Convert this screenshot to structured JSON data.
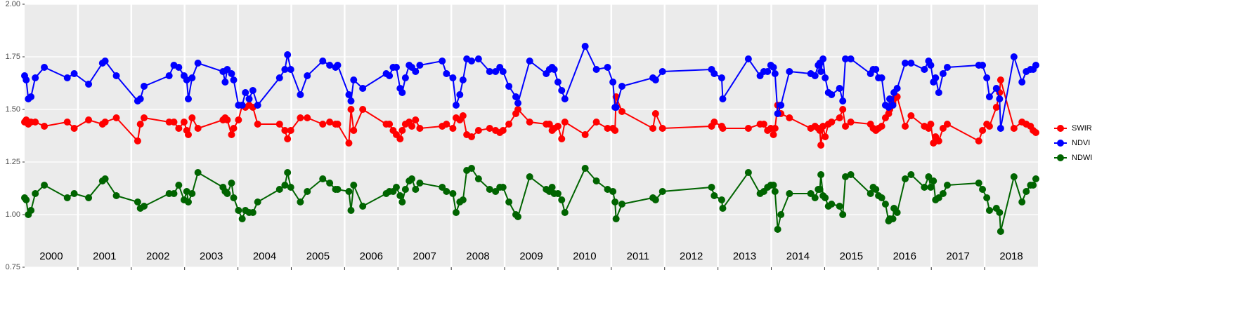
{
  "chart_data": {
    "type": "line",
    "x": [
      2000.0,
      2000.03,
      2000.07,
      2000.12,
      2000.2,
      2000.37,
      2000.8,
      2000.93,
      2001.2,
      2001.46,
      2001.51,
      2001.72,
      2002.12,
      2002.17,
      2002.24,
      2002.71,
      2002.8,
      2002.89,
      2002.99,
      2003.04,
      2003.07,
      2003.14,
      2003.25,
      2003.72,
      2003.76,
      2003.8,
      2003.88,
      2003.92,
      2004.01,
      2004.08,
      2004.14,
      2004.21,
      2004.28,
      2004.37,
      2004.78,
      2004.88,
      2004.93,
      2004.99,
      2005.17,
      2005.3,
      2005.59,
      2005.72,
      2005.83,
      2005.87,
      2006.08,
      2006.12,
      2006.17,
      2006.34,
      2006.78,
      2006.84,
      2006.91,
      2006.97,
      2007.04,
      2007.08,
      2007.14,
      2007.21,
      2007.26,
      2007.33,
      2007.41,
      2007.83,
      2007.91,
      2008.03,
      2008.09,
      2008.16,
      2008.22,
      2008.29,
      2008.38,
      2008.51,
      2008.72,
      2008.83,
      2008.91,
      2008.97,
      2009.08,
      2009.21,
      2009.25,
      2009.47,
      2009.78,
      2009.84,
      2009.89,
      2009.93,
      2010.0,
      2010.07,
      2010.13,
      2010.51,
      2010.72,
      2010.93,
      2011.03,
      2011.07,
      2011.09,
      2011.2,
      2011.78,
      2011.83,
      2011.96,
      2012.88,
      2012.93,
      2013.07,
      2013.09,
      2013.57,
      2013.79,
      2013.86,
      2013.93,
      2013.99,
      2014.04,
      2014.07,
      2014.12,
      2014.18,
      2014.34,
      2014.74,
      2014.82,
      2014.88,
      2014.91,
      2014.93,
      2014.97,
      2015.01,
      2015.07,
      2015.13,
      2015.28,
      2015.34,
      2015.39,
      2015.49,
      2015.86,
      2015.91,
      2015.96,
      2016.01,
      2016.07,
      2016.14,
      2016.2,
      2016.22,
      2016.28,
      2016.3,
      2016.36,
      2016.51,
      2016.62,
      2016.87,
      2016.95,
      2016.99,
      2017.04,
      2017.08,
      2017.14,
      2017.22,
      2017.3,
      2017.89,
      2017.96,
      2018.04,
      2018.09,
      2018.22,
      2018.28,
      2018.3,
      2018.55,
      2018.7,
      2018.78,
      2018.86,
      2018.91,
      2018.96
    ],
    "series": [
      {
        "name": "SWIR",
        "color": "#ff0000",
        "values": [
          1.44,
          1.45,
          1.43,
          1.44,
          1.44,
          1.42,
          1.44,
          1.41,
          1.45,
          1.43,
          1.44,
          1.46,
          1.35,
          1.43,
          1.46,
          1.44,
          1.44,
          1.41,
          1.44,
          1.4,
          1.38,
          1.46,
          1.41,
          1.45,
          1.46,
          1.45,
          1.38,
          1.41,
          1.45,
          1.52,
          1.51,
          1.52,
          1.51,
          1.43,
          1.43,
          1.4,
          1.36,
          1.4,
          1.46,
          1.46,
          1.43,
          1.44,
          1.43,
          1.43,
          1.34,
          1.5,
          1.4,
          1.5,
          1.43,
          1.43,
          1.4,
          1.38,
          1.36,
          1.4,
          1.43,
          1.44,
          1.42,
          1.45,
          1.41,
          1.42,
          1.43,
          1.41,
          1.46,
          1.45,
          1.47,
          1.38,
          1.37,
          1.4,
          1.41,
          1.4,
          1.39,
          1.4,
          1.43,
          1.48,
          1.5,
          1.44,
          1.43,
          1.43,
          1.4,
          1.41,
          1.42,
          1.36,
          1.44,
          1.38,
          1.44,
          1.41,
          1.41,
          1.4,
          1.56,
          1.49,
          1.41,
          1.48,
          1.41,
          1.42,
          1.44,
          1.42,
          1.41,
          1.41,
          1.43,
          1.43,
          1.4,
          1.41,
          1.38,
          1.41,
          1.52,
          1.48,
          1.46,
          1.41,
          1.42,
          1.41,
          1.4,
          1.33,
          1.42,
          1.37,
          1.43,
          1.44,
          1.46,
          1.5,
          1.42,
          1.44,
          1.43,
          1.41,
          1.4,
          1.41,
          1.42,
          1.46,
          1.48,
          1.5,
          1.53,
          1.55,
          1.56,
          1.42,
          1.47,
          1.42,
          1.41,
          1.43,
          1.34,
          1.37,
          1.35,
          1.41,
          1.43,
          1.35,
          1.4,
          1.43,
          1.42,
          1.51,
          1.58,
          1.64,
          1.41,
          1.44,
          1.43,
          1.42,
          1.4,
          1.39
        ]
      },
      {
        "name": "NDVI",
        "color": "#0000ff",
        "values": [
          1.66,
          1.64,
          1.55,
          1.56,
          1.65,
          1.7,
          1.65,
          1.67,
          1.62,
          1.72,
          1.73,
          1.66,
          1.54,
          1.55,
          1.61,
          1.66,
          1.71,
          1.7,
          1.66,
          1.64,
          1.55,
          1.65,
          1.72,
          1.68,
          1.63,
          1.69,
          1.67,
          1.64,
          1.52,
          1.52,
          1.58,
          1.55,
          1.59,
          1.52,
          1.65,
          1.69,
          1.76,
          1.69,
          1.57,
          1.66,
          1.73,
          1.71,
          1.7,
          1.71,
          1.57,
          1.54,
          1.64,
          1.6,
          1.67,
          1.66,
          1.7,
          1.7,
          1.6,
          1.58,
          1.65,
          1.71,
          1.7,
          1.68,
          1.71,
          1.73,
          1.67,
          1.65,
          1.52,
          1.57,
          1.64,
          1.74,
          1.73,
          1.74,
          1.68,
          1.68,
          1.7,
          1.68,
          1.61,
          1.56,
          1.53,
          1.73,
          1.67,
          1.69,
          1.7,
          1.69,
          1.63,
          1.59,
          1.55,
          1.8,
          1.69,
          1.7,
          1.63,
          1.51,
          1.51,
          1.61,
          1.65,
          1.64,
          1.68,
          1.69,
          1.67,
          1.65,
          1.55,
          1.74,
          1.66,
          1.68,
          1.68,
          1.71,
          1.7,
          1.67,
          1.48,
          1.52,
          1.68,
          1.67,
          1.66,
          1.71,
          1.72,
          1.68,
          1.74,
          1.65,
          1.58,
          1.57,
          1.6,
          1.54,
          1.74,
          1.74,
          1.67,
          1.69,
          1.69,
          1.65,
          1.65,
          1.52,
          1.51,
          1.55,
          1.52,
          1.58,
          1.6,
          1.72,
          1.72,
          1.69,
          1.73,
          1.71,
          1.63,
          1.65,
          1.58,
          1.67,
          1.7,
          1.71,
          1.71,
          1.65,
          1.56,
          1.6,
          1.55,
          1.41,
          1.75,
          1.63,
          1.68,
          1.69,
          1.69,
          1.71
        ]
      },
      {
        "name": "NDWI",
        "color": "#006400",
        "values": [
          1.08,
          1.07,
          1.0,
          1.02,
          1.1,
          1.14,
          1.08,
          1.1,
          1.08,
          1.16,
          1.17,
          1.09,
          1.06,
          1.03,
          1.04,
          1.1,
          1.1,
          1.14,
          1.07,
          1.11,
          1.06,
          1.1,
          1.2,
          1.13,
          1.11,
          1.1,
          1.15,
          1.08,
          1.02,
          0.98,
          1.02,
          1.01,
          1.01,
          1.06,
          1.12,
          1.14,
          1.2,
          1.13,
          1.06,
          1.11,
          1.17,
          1.15,
          1.12,
          1.12,
          1.11,
          1.02,
          1.14,
          1.04,
          1.1,
          1.11,
          1.11,
          1.13,
          1.09,
          1.06,
          1.12,
          1.16,
          1.17,
          1.12,
          1.15,
          1.13,
          1.11,
          1.1,
          1.01,
          1.06,
          1.07,
          1.21,
          1.22,
          1.17,
          1.12,
          1.11,
          1.13,
          1.13,
          1.06,
          1.0,
          0.99,
          1.18,
          1.12,
          1.11,
          1.13,
          1.1,
          1.1,
          1.07,
          1.01,
          1.22,
          1.16,
          1.12,
          1.11,
          1.06,
          0.98,
          1.05,
          1.08,
          1.07,
          1.11,
          1.13,
          1.09,
          1.07,
          1.03,
          1.2,
          1.1,
          1.11,
          1.13,
          1.14,
          1.14,
          1.11,
          0.93,
          1.0,
          1.1,
          1.1,
          1.08,
          1.12,
          1.12,
          1.19,
          1.09,
          1.08,
          1.04,
          1.05,
          1.04,
          1.0,
          1.18,
          1.19,
          1.1,
          1.13,
          1.12,
          1.09,
          1.08,
          1.05,
          0.97,
          0.98,
          0.98,
          1.03,
          1.01,
          1.17,
          1.19,
          1.13,
          1.18,
          1.13,
          1.16,
          1.07,
          1.08,
          1.1,
          1.14,
          1.15,
          1.12,
          1.08,
          1.02,
          1.03,
          1.01,
          0.92,
          1.18,
          1.06,
          1.11,
          1.14,
          1.14,
          1.17
        ]
      }
    ],
    "xlim": [
      2000,
      2019
    ],
    "xticks": [
      2001,
      2002,
      2003,
      2004,
      2005,
      2006,
      2007,
      2008,
      2009,
      2010,
      2011,
      2012,
      2013,
      2014,
      2015,
      2016,
      2017,
      2018
    ],
    "year_labels": [
      "2000",
      "2001",
      "2002",
      "2003",
      "2004",
      "2005",
      "2006",
      "2007",
      "2008",
      "2009",
      "2010",
      "2011",
      "2012",
      "2013",
      "2014",
      "2015",
      "2016",
      "2017",
      "2018"
    ],
    "ylim": [
      0.75,
      2.0
    ],
    "yticks": [
      {
        "value": 0.75,
        "label": "0.75"
      },
      {
        "value": 1.0,
        "label": "1.00"
      },
      {
        "value": 1.25,
        "label": "1.25"
      },
      {
        "value": 1.5,
        "label": "1.50"
      },
      {
        "value": 1.75,
        "label": "1.75"
      },
      {
        "value": 2.0,
        "label": "2.00"
      }
    ],
    "grid": true,
    "legend": "right"
  }
}
